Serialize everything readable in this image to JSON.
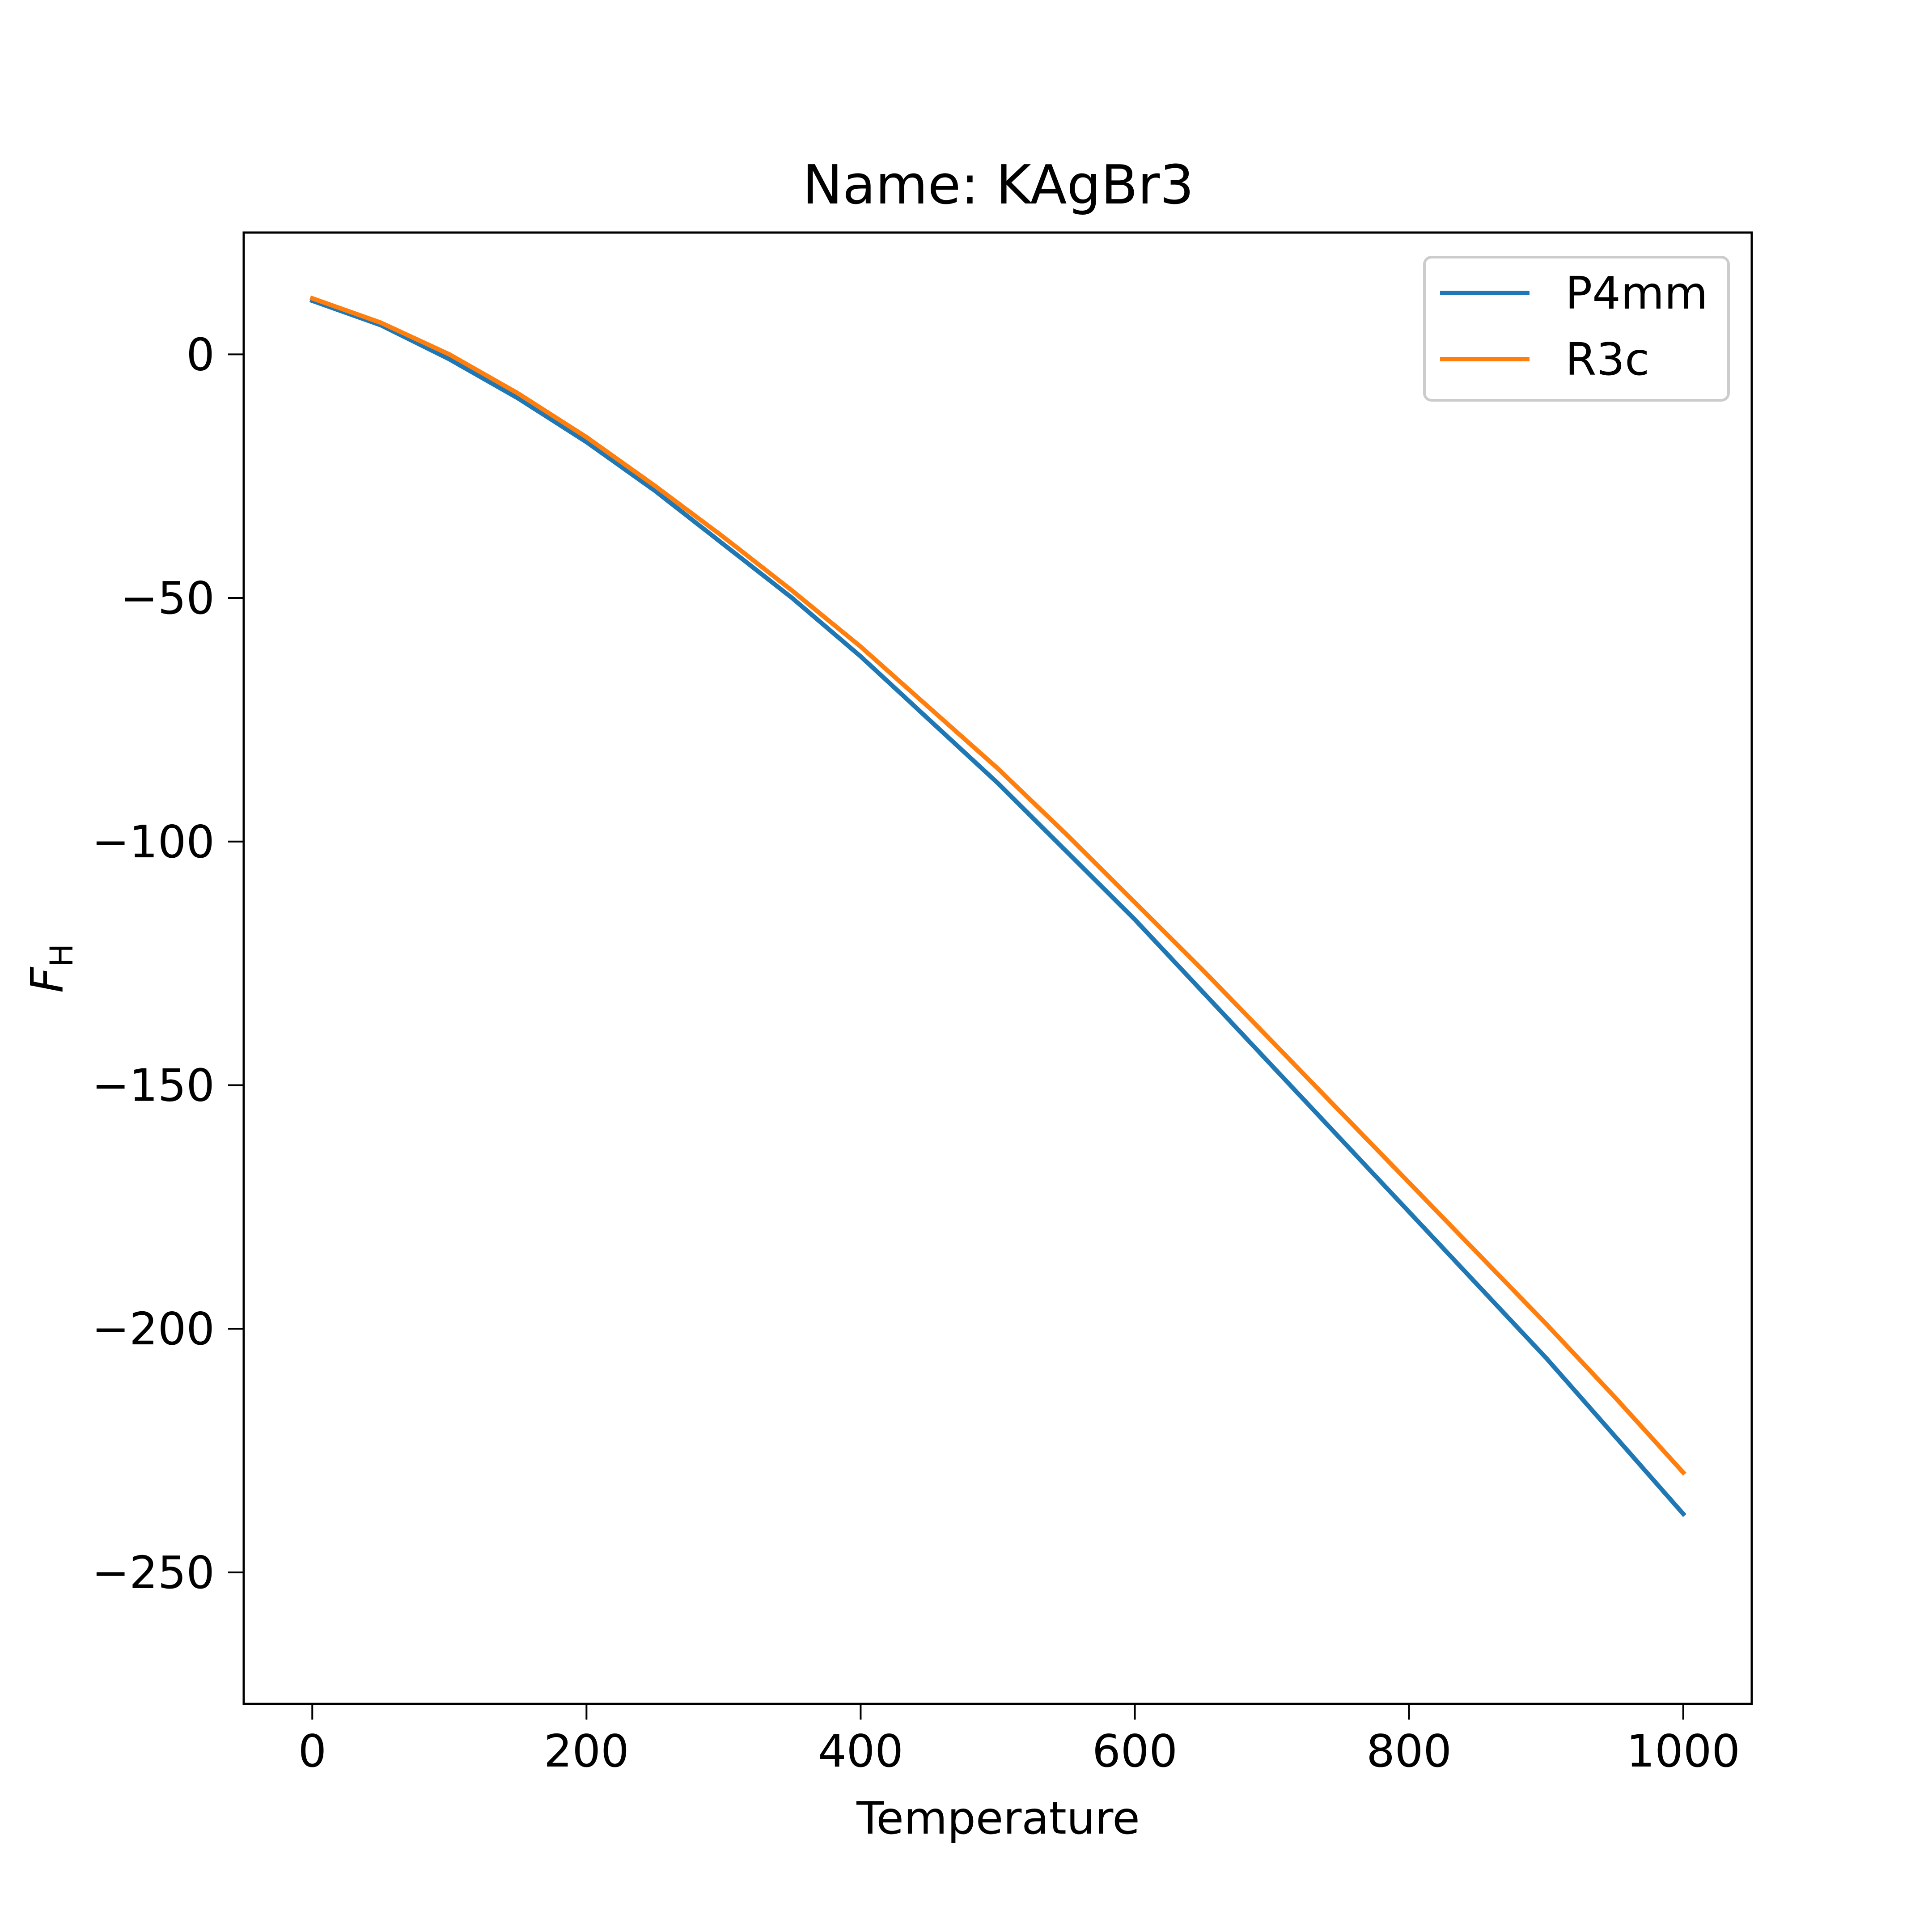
{
  "chart_data": {
    "type": "line",
    "title": "Name: KAgBr3",
    "xlabel": "Temperature",
    "ylabel": "F",
    "ylabel_subscript": "H",
    "xlim": [
      -50,
      1050
    ],
    "ylim": [
      -277,
      25
    ],
    "xticks": [
      {
        "value": 0,
        "label": "0"
      },
      {
        "value": 200,
        "label": "200"
      },
      {
        "value": 400,
        "label": "400"
      },
      {
        "value": 600,
        "label": "600"
      },
      {
        "value": 800,
        "label": "800"
      },
      {
        "value": 1000,
        "label": "1000"
      }
    ],
    "yticks": [
      {
        "value": 0,
        "label": "0"
      },
      {
        "value": -50,
        "label": "−50"
      },
      {
        "value": -100,
        "label": "−100"
      },
      {
        "value": -150,
        "label": "−150"
      },
      {
        "value": -200,
        "label": "−200"
      },
      {
        "value": -250,
        "label": "−250"
      }
    ],
    "legend_position": "top-right",
    "grid": false,
    "x": [
      0,
      50,
      100,
      150,
      200,
      250,
      300,
      350,
      400,
      450,
      500,
      550,
      600,
      650,
      700,
      750,
      800,
      850,
      900,
      950,
      1000
    ],
    "series": [
      {
        "name": "P4mm",
        "color": "#1f77b4",
        "values": [
          11,
          6,
          -1,
          -9,
          -18,
          -28,
          -39,
          -50,
          -62,
          -75,
          -88,
          -102,
          -116,
          -131,
          -146,
          -161,
          -176,
          -191,
          -206,
          -222,
          -238
        ]
      },
      {
        "name": "R3c",
        "color": "#ff7f0e",
        "values": [
          11.5,
          6.5,
          0,
          -8,
          -17,
          -27,
          -37.5,
          -48.5,
          -60,
          -72.5,
          -85,
          -98.5,
          -112.5,
          -126.5,
          -141,
          -155.5,
          -170,
          -184.5,
          -199,
          -214,
          -229.5
        ]
      }
    ]
  }
}
